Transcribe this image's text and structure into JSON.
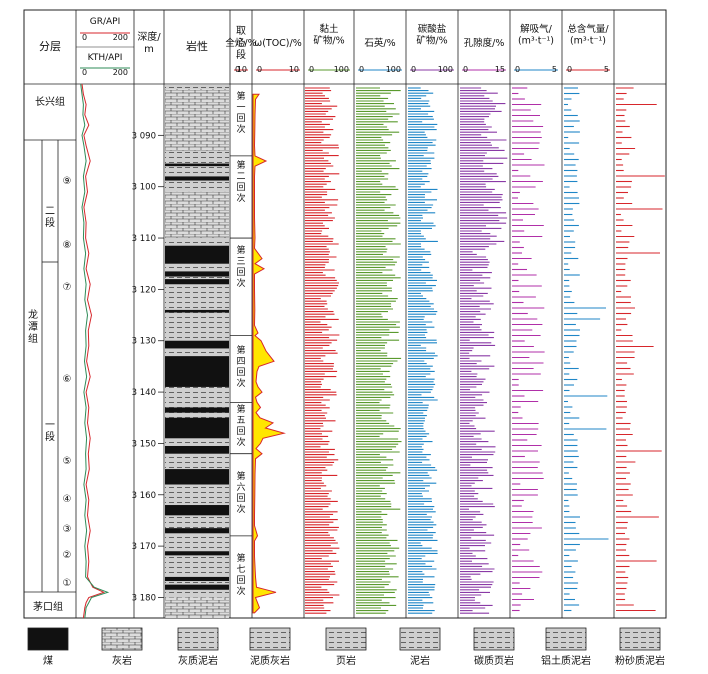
{
  "headers": {
    "formation": "分层",
    "gr": "GR/API",
    "kth": "KTH/API",
    "depth": "深度/\nm",
    "lithology": "岩性",
    "coring": "取心段",
    "tracks": [
      {
        "label": "全烃/%",
        "min": "0",
        "max": "10",
        "color": "#d7262b"
      },
      {
        "label": "ω(TOC)/%",
        "min": "0",
        "max": "10",
        "color": "#d7262b"
      },
      {
        "label": "黏土\n矿物/%",
        "min": "0",
        "max": "100",
        "color": "#5a9a2e"
      },
      {
        "label": "石英/%",
        "min": "0",
        "max": "100",
        "color": "#1f86c7"
      },
      {
        "label": "碳酸盐\n矿物/%",
        "min": "0",
        "max": "100",
        "color": "#8a3aa6"
      },
      {
        "label": "孔隙度/%",
        "min": "0",
        "max": "15",
        "color": "#b02fa8"
      },
      {
        "label": "解吸气/\n(m³·t⁻¹)",
        "min": "0",
        "max": "5",
        "color": "#1f86c7"
      },
      {
        "label": "总含气量/\n(m³·t⁻¹)",
        "min": "0",
        "max": "5",
        "color": "#d7262b"
      }
    ]
  },
  "gr_scale": {
    "min": "0",
    "max": "200"
  },
  "kth_scale": {
    "min": "0",
    "max": "200"
  },
  "strat": {
    "top": "长兴组",
    "middle": "龙\n潭\n组",
    "upper_member": "二\n段",
    "lower_member": "一\n段",
    "bottom": "茅口组",
    "layers": [
      "⑨",
      "⑧",
      "⑦",
      "⑥",
      "⑤",
      "④",
      "③",
      "②",
      "①"
    ]
  },
  "coring_sections": [
    "第\n一\n回\n次",
    "第\n二\n回\n次",
    "第\n三\n回\n次",
    "第\n四\n回\n次",
    "第\n五\n回\n次",
    "第\n六\n回\n次",
    "第\n七\n回\n次"
  ],
  "legend": [
    {
      "name": "煤",
      "pattern": "coal"
    },
    {
      "name": "灰岩",
      "pattern": "limestone"
    },
    {
      "name": "灰质泥岩",
      "pattern": "calc-mud"
    },
    {
      "name": "泥质灰岩",
      "pattern": "mud-lime"
    },
    {
      "name": "页岩",
      "pattern": "shale"
    },
    {
      "name": "泥岩",
      "pattern": "mudstone"
    },
    {
      "name": "碳质页岩",
      "pattern": "carb-shale"
    },
    {
      "name": "铝土质泥岩",
      "pattern": "bauxite"
    },
    {
      "name": "粉砂质泥岩",
      "pattern": "silty"
    }
  ],
  "chart_data": {
    "type": "well-log",
    "depth_axis": {
      "ticks": [
        3090,
        3100,
        3110,
        3120,
        3130,
        3140,
        3150,
        3160,
        3170,
        3180
      ],
      "range": [
        3080,
        3184
      ]
    },
    "total_hydrocarbon": [
      [
        3082,
        1.2
      ],
      [
        3083,
        0.5
      ],
      [
        3086,
        0.4
      ],
      [
        3089,
        0.35
      ],
      [
        3092,
        0.3
      ],
      [
        3094,
        0.4
      ],
      [
        3095,
        2.6
      ],
      [
        3096,
        0.4
      ],
      [
        3098,
        0.3
      ],
      [
        3102,
        0.3
      ],
      [
        3106,
        0.3
      ],
      [
        3110,
        0.4
      ],
      [
        3112,
        0.3
      ],
      [
        3114,
        1.8
      ],
      [
        3115,
        0.4
      ],
      [
        3116,
        2.2
      ],
      [
        3117,
        0.3
      ],
      [
        3120,
        0.3
      ],
      [
        3124,
        0.35
      ],
      [
        3127,
        0.3
      ],
      [
        3128.5,
        1.0
      ],
      [
        3129,
        0.4
      ],
      [
        3130,
        1.6
      ],
      [
        3132,
        2.6
      ],
      [
        3134,
        4.2
      ],
      [
        3135,
        1.2
      ],
      [
        3136,
        0.8
      ],
      [
        3138,
        0.6
      ],
      [
        3139,
        1.0
      ],
      [
        3140,
        1.8
      ],
      [
        3141,
        0.5
      ],
      [
        3142,
        0.8
      ],
      [
        3143,
        1.5
      ],
      [
        3144,
        0.6
      ],
      [
        3145,
        1.4
      ],
      [
        3146,
        4.0
      ],
      [
        3147,
        2.5
      ],
      [
        3148,
        6.2
      ],
      [
        3149,
        2.0
      ],
      [
        3150,
        1.5
      ],
      [
        3151,
        0.6
      ],
      [
        3152,
        1.8
      ],
      [
        3153,
        0.5
      ],
      [
        3156,
        0.4
      ],
      [
        3160,
        0.35
      ],
      [
        3164,
        0.3
      ],
      [
        3166,
        0.3
      ],
      [
        3168,
        0.9
      ],
      [
        3169,
        0.3
      ],
      [
        3172,
        0.3
      ],
      [
        3174,
        0.4
      ],
      [
        3176,
        0.5
      ],
      [
        3178,
        0.7
      ],
      [
        3179,
        4.6
      ],
      [
        3180,
        0.5
      ],
      [
        3182,
        1.3
      ],
      [
        3183,
        0.3
      ]
    ],
    "gr": [
      [
        3080,
        15
      ],
      [
        3082,
        20
      ],
      [
        3084,
        30
      ],
      [
        3086,
        25
      ],
      [
        3088,
        40
      ],
      [
        3090,
        22
      ],
      [
        3092,
        30
      ],
      [
        3095,
        45
      ],
      [
        3098,
        28
      ],
      [
        3101,
        35
      ],
      [
        3104,
        22
      ],
      [
        3107,
        30
      ],
      [
        3110,
        28
      ],
      [
        3113,
        40
      ],
      [
        3116,
        30
      ],
      [
        3119,
        45
      ],
      [
        3122,
        35
      ],
      [
        3125,
        50
      ],
      [
        3128,
        38
      ],
      [
        3131,
        40
      ],
      [
        3134,
        32
      ],
      [
        3137,
        45
      ],
      [
        3140,
        30
      ],
      [
        3143,
        40
      ],
      [
        3146,
        35
      ],
      [
        3149,
        45
      ],
      [
        3152,
        38
      ],
      [
        3155,
        42
      ],
      [
        3158,
        30
      ],
      [
        3161,
        40
      ],
      [
        3164,
        35
      ],
      [
        3167,
        45
      ],
      [
        3170,
        35
      ],
      [
        3173,
        40
      ],
      [
        3176,
        35
      ],
      [
        3178,
        55
      ],
      [
        3179,
        95
      ],
      [
        3180,
        40
      ],
      [
        3181,
        30
      ],
      [
        3182,
        25
      ],
      [
        3184,
        20
      ]
    ],
    "kth": [
      [
        3080,
        10
      ],
      [
        3082,
        15
      ],
      [
        3084,
        20
      ],
      [
        3086,
        18
      ],
      [
        3088,
        25
      ],
      [
        3090,
        15
      ],
      [
        3092,
        22
      ],
      [
        3095,
        30
      ],
      [
        3098,
        20
      ],
      [
        3101,
        25
      ],
      [
        3104,
        15
      ],
      [
        3107,
        22
      ],
      [
        3110,
        20
      ],
      [
        3113,
        28
      ],
      [
        3116,
        22
      ],
      [
        3119,
        30
      ],
      [
        3122,
        25
      ],
      [
        3125,
        35
      ],
      [
        3128,
        28
      ],
      [
        3131,
        30
      ],
      [
        3134,
        24
      ],
      [
        3137,
        32
      ],
      [
        3140,
        22
      ],
      [
        3143,
        30
      ],
      [
        3146,
        25
      ],
      [
        3149,
        32
      ],
      [
        3152,
        28
      ],
      [
        3155,
        30
      ],
      [
        3158,
        22
      ],
      [
        3161,
        30
      ],
      [
        3164,
        25
      ],
      [
        3167,
        32
      ],
      [
        3170,
        25
      ],
      [
        3173,
        30
      ],
      [
        3176,
        28
      ],
      [
        3178,
        60
      ],
      [
        3179,
        110
      ],
      [
        3180,
        50
      ],
      [
        3181,
        40
      ],
      [
        3182,
        30
      ],
      [
        3184,
        25
      ]
    ],
    "coal_beds": [
      [
        3095.5,
        3096
      ],
      [
        3098,
        3098.8
      ],
      [
        3111.5,
        3115
      ],
      [
        3116.5,
        3117.5
      ],
      [
        3118,
        3119
      ],
      [
        3124,
        3124.5
      ],
      [
        3130,
        3131.5
      ],
      [
        3133,
        3139
      ],
      [
        3143,
        3144
      ],
      [
        3145,
        3149
      ],
      [
        3150.5,
        3152
      ],
      [
        3155,
        3158
      ],
      [
        3162,
        3164
      ],
      [
        3166.5,
        3167.5
      ],
      [
        3171,
        3171.8
      ],
      [
        3176,
        3176.8
      ],
      [
        3177.5,
        3178.5
      ]
    ]
  }
}
